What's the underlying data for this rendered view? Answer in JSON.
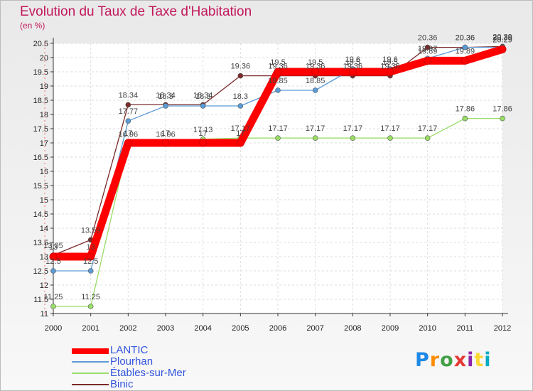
{
  "chart_data": {
    "type": "line",
    "title": "Evolution du Taux de Taxe d'Habitation",
    "ylabel": "(en %)",
    "xlabel": "",
    "ylim": [
      11,
      20.5
    ],
    "ytick_step": 0.5,
    "x": [
      "2000",
      "2001",
      "2002",
      "2003",
      "2004",
      "2005",
      "2006",
      "2007",
      "2008",
      "2009",
      "2010",
      "2011",
      "2012"
    ],
    "series": [
      {
        "name": "LANTIC",
        "color": "#ff0000",
        "values": [
          13,
          13,
          17,
          17,
          17,
          17,
          19.5,
          19.5,
          19.5,
          19.5,
          19.89,
          19.89,
          20.29
        ]
      },
      {
        "name": "Plourhan",
        "color": "#5b9bd5",
        "values": [
          12.5,
          12.5,
          17.77,
          18.3,
          18.3,
          18.3,
          18.85,
          18.85,
          19.6,
          19.6,
          19.97,
          20.36,
          20.36
        ]
      },
      {
        "name": "Étables-sur-Mer",
        "color": "#99dd66",
        "values": [
          11.25,
          11.25,
          16.96,
          16.96,
          17.13,
          17.17,
          17.17,
          17.17,
          17.17,
          17.17,
          17.17,
          17.86,
          17.86
        ]
      },
      {
        "name": "Binic",
        "color": "#7b2a2a",
        "values": [
          13.05,
          13.59,
          18.34,
          18.34,
          18.34,
          19.36,
          19.36,
          19.36,
          19.36,
          19.36,
          20.36,
          20.36,
          20.39
        ]
      }
    ]
  },
  "legend": {
    "items": [
      {
        "label": "LANTIC"
      },
      {
        "label": "Plourhan"
      },
      {
        "label": "Étables-sur-Mer"
      },
      {
        "label": "Binic"
      }
    ]
  },
  "logo": {
    "text": "Proxiti"
  }
}
